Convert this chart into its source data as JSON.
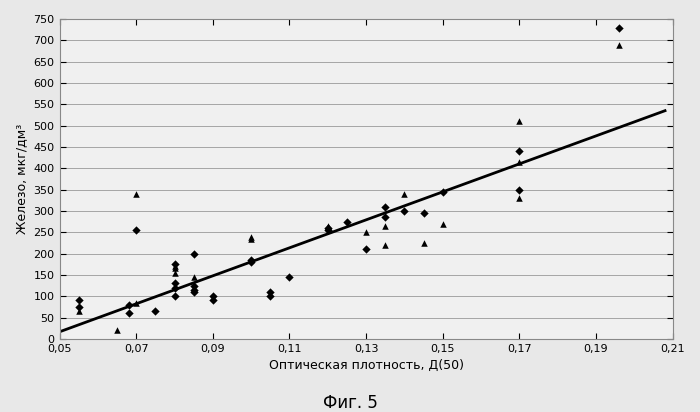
{
  "title": "",
  "xlabel": "Оптическая плотность, Д(50)",
  "ylabel": "Железо, мкг/дм³",
  "fig_label": "Фиг. 5",
  "xlim": [
    0.05,
    0.21
  ],
  "ylim": [
    0,
    750
  ],
  "xticks": [
    0.05,
    0.07,
    0.09,
    0.11,
    0.13,
    0.15,
    0.17,
    0.19,
    0.21
  ],
  "yticks": [
    0,
    50,
    100,
    150,
    200,
    250,
    300,
    350,
    400,
    450,
    500,
    550,
    600,
    650,
    700,
    750
  ],
  "trendline_x": [
    0.048,
    0.208
  ],
  "trendline_y": [
    10,
    535
  ],
  "diamond_points": [
    [
      0.055,
      90
    ],
    [
      0.055,
      75
    ],
    [
      0.068,
      80
    ],
    [
      0.068,
      60
    ],
    [
      0.07,
      255
    ],
    [
      0.075,
      65
    ],
    [
      0.08,
      100
    ],
    [
      0.08,
      120
    ],
    [
      0.08,
      175
    ],
    [
      0.08,
      130
    ],
    [
      0.085,
      110
    ],
    [
      0.085,
      125
    ],
    [
      0.085,
      115
    ],
    [
      0.085,
      200
    ],
    [
      0.09,
      100
    ],
    [
      0.09,
      90
    ],
    [
      0.1,
      185
    ],
    [
      0.1,
      180
    ],
    [
      0.105,
      100
    ],
    [
      0.105,
      110
    ],
    [
      0.11,
      145
    ],
    [
      0.12,
      260
    ],
    [
      0.12,
      255
    ],
    [
      0.125,
      275
    ],
    [
      0.13,
      210
    ],
    [
      0.135,
      285
    ],
    [
      0.135,
      310
    ],
    [
      0.14,
      300
    ],
    [
      0.145,
      295
    ],
    [
      0.15,
      345
    ],
    [
      0.17,
      350
    ],
    [
      0.17,
      440
    ],
    [
      0.196,
      730
    ]
  ],
  "triangle_points": [
    [
      0.055,
      65
    ],
    [
      0.065,
      20
    ],
    [
      0.07,
      85
    ],
    [
      0.07,
      340
    ],
    [
      0.08,
      155
    ],
    [
      0.08,
      165
    ],
    [
      0.08,
      170
    ],
    [
      0.085,
      145
    ],
    [
      0.1,
      235
    ],
    [
      0.1,
      240
    ],
    [
      0.12,
      265
    ],
    [
      0.13,
      250
    ],
    [
      0.135,
      220
    ],
    [
      0.135,
      265
    ],
    [
      0.14,
      340
    ],
    [
      0.145,
      225
    ],
    [
      0.15,
      270
    ],
    [
      0.17,
      330
    ],
    [
      0.17,
      510
    ],
    [
      0.17,
      415
    ],
    [
      0.196,
      690
    ]
  ],
  "marker_color": "#000000",
  "line_color": "#000000",
  "bg_color": "#e8e8e8",
  "plot_bg_color": "#f0f0f0",
  "grid_color": "#999999",
  "border_color": "#888888",
  "font_size_label": 9,
  "font_size_tick": 8,
  "font_size_fig_label": 12
}
